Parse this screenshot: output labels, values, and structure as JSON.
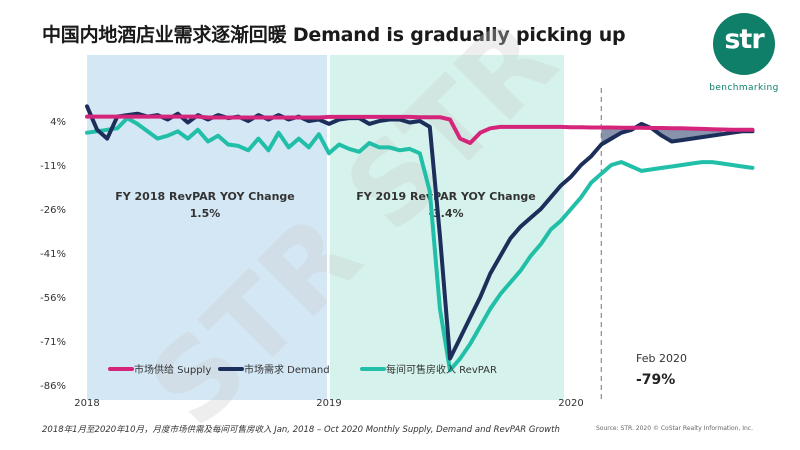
{
  "title": "中国内地酒店业需求逐渐回暖 Demand is gradually picking up",
  "logo": {
    "text": "str",
    "subtext": "benchmarking",
    "color": "#0f7f6a"
  },
  "watermark": "STR STR",
  "footer": {
    "caption": "2018年1月至2020年10月，月度市场供需及每间可售房收入 Jan, 2018 – Oct 2020 Monthly Supply, Demand and RevPAR Growth",
    "source": "Source: STR. 2020 © CoStar Realty Information, Inc."
  },
  "chart_data": {
    "type": "line",
    "xlabel": "",
    "ylabel": "",
    "x_ticks": [
      "2018",
      "2019",
      "2020"
    ],
    "y_ticks": [
      "4%",
      "-11%",
      "-26%",
      "-41%",
      "-56%",
      "-71%",
      "-86%"
    ],
    "ylim": [
      -86,
      9
    ],
    "x_range": [
      "2018-01",
      "2020-10"
    ],
    "grid": false,
    "legend_position": "bottom-left",
    "annotations": {
      "fy2018_label": "FY 2018 RevPAR YOY Change",
      "fy2018_value": "1.5%",
      "fy2019_label": "FY 2019 RevPAR YOY Change",
      "fy2019_value": "-3.4%",
      "feb_label": "Feb 2020",
      "feb_value": "-79%"
    },
    "colors": {
      "supply": "#d4257b",
      "demand": "#1c2f5a",
      "revpar": "#22bfa8",
      "fy2018_band": "#d3e7f5",
      "fy2019_band": "#d5f3ec",
      "shade": "#5f6d8f"
    },
    "x": [
      0,
      0.5,
      1,
      1.5,
      2,
      2.5,
      3,
      3.5,
      4,
      4.5,
      5,
      5.5,
      6,
      6.5,
      7,
      7.5,
      8,
      8.5,
      9,
      9.5,
      10,
      10.5,
      11,
      11.5,
      12,
      12.5,
      13,
      13.5,
      14,
      14.5,
      15,
      15.5,
      16,
      16.5,
      17,
      17.5,
      18,
      18.5,
      19,
      19.5,
      20,
      20.5,
      21,
      21.5,
      22,
      22.5,
      23,
      23.5,
      24,
      24.5,
      25,
      25.5,
      26,
      26.5,
      27,
      27.5,
      28,
      28.5,
      29,
      29.5,
      30,
      30.5,
      31,
      31.5,
      32,
      32.5,
      33
    ],
    "series": [
      {
        "name": "市场供给 Supply",
        "values": [
          5.5,
          5.5,
          5.5,
          5.5,
          5.5,
          5.5,
          5.5,
          5.5,
          5.5,
          5.5,
          5.5,
          5.5,
          5.2,
          5.2,
          5.2,
          5.2,
          5.2,
          5.2,
          5.2,
          5.2,
          5.2,
          5.2,
          5.2,
          5.2,
          5.4,
          5.4,
          5.4,
          5.4,
          5.4,
          5.4,
          5.4,
          5.4,
          5.4,
          5.3,
          5.3,
          5.3,
          4.5,
          -2.0,
          -3.5,
          0.0,
          1.5,
          2.0,
          2.0,
          2.0,
          2.0,
          2.0,
          2.0,
          2.0,
          1.9,
          1.9,
          1.8,
          1.8,
          1.8,
          1.7,
          1.7,
          1.7,
          1.6,
          1.6,
          1.5,
          1.5,
          1.4,
          1.3,
          1.2,
          1.1,
          1.0,
          1.0,
          1.0
        ]
      },
      {
        "name": "市场需求 Demand",
        "values": [
          9.0,
          1.0,
          -2.0,
          5.5,
          6.0,
          6.5,
          5.5,
          6.0,
          4.5,
          6.5,
          3.5,
          6.0,
          4.5,
          6.0,
          5.0,
          5.5,
          4.0,
          6.0,
          4.5,
          6.0,
          4.5,
          5.5,
          4.0,
          4.5,
          3.0,
          4.5,
          5.0,
          5.0,
          3.0,
          4.0,
          4.5,
          4.5,
          3.5,
          4.0,
          2.0,
          -35.0,
          -77.0,
          -70.0,
          -63.0,
          -56.0,
          -48.0,
          -42.0,
          -36.0,
          -32.0,
          -29.0,
          -26.0,
          -22.0,
          -18.0,
          -15.0,
          -11.0,
          -8.0,
          -4.0,
          -2.0,
          0.0,
          1.0,
          3.0,
          1.5,
          -1.0,
          -3.0,
          -2.5,
          -2.0,
          -1.5,
          -1.0,
          -0.5,
          0.0,
          0.5,
          0.5
        ]
      },
      {
        "name": "每间可售房收入 RevPAR",
        "values": [
          0.0,
          0.5,
          1.0,
          1.5,
          5.0,
          3.0,
          0.5,
          -2.0,
          -1.0,
          0.5,
          -2.0,
          1.0,
          -3.0,
          -1.0,
          -4.0,
          -4.5,
          -6.0,
          -2.0,
          -6.0,
          0.0,
          -5.0,
          -2.0,
          -5.0,
          -0.5,
          -7.0,
          -4.0,
          -5.5,
          -6.5,
          -3.5,
          -5.0,
          -5.0,
          -6.0,
          -5.5,
          -7.0,
          -20.0,
          -60.0,
          -81.0,
          -77.0,
          -72.0,
          -66.0,
          -60.0,
          -55.0,
          -51.0,
          -47.0,
          -42.0,
          -38.0,
          -33.0,
          -30.0,
          -26.0,
          -22.0,
          -17.0,
          -14.0,
          -11.0,
          -10.0,
          -11.5,
          -13.0,
          -12.5,
          -12.0,
          -11.5,
          -11.0,
          -10.5,
          -10.0,
          -10.0,
          -10.5,
          -11.0,
          -11.5,
          -12.0
        ]
      }
    ]
  }
}
